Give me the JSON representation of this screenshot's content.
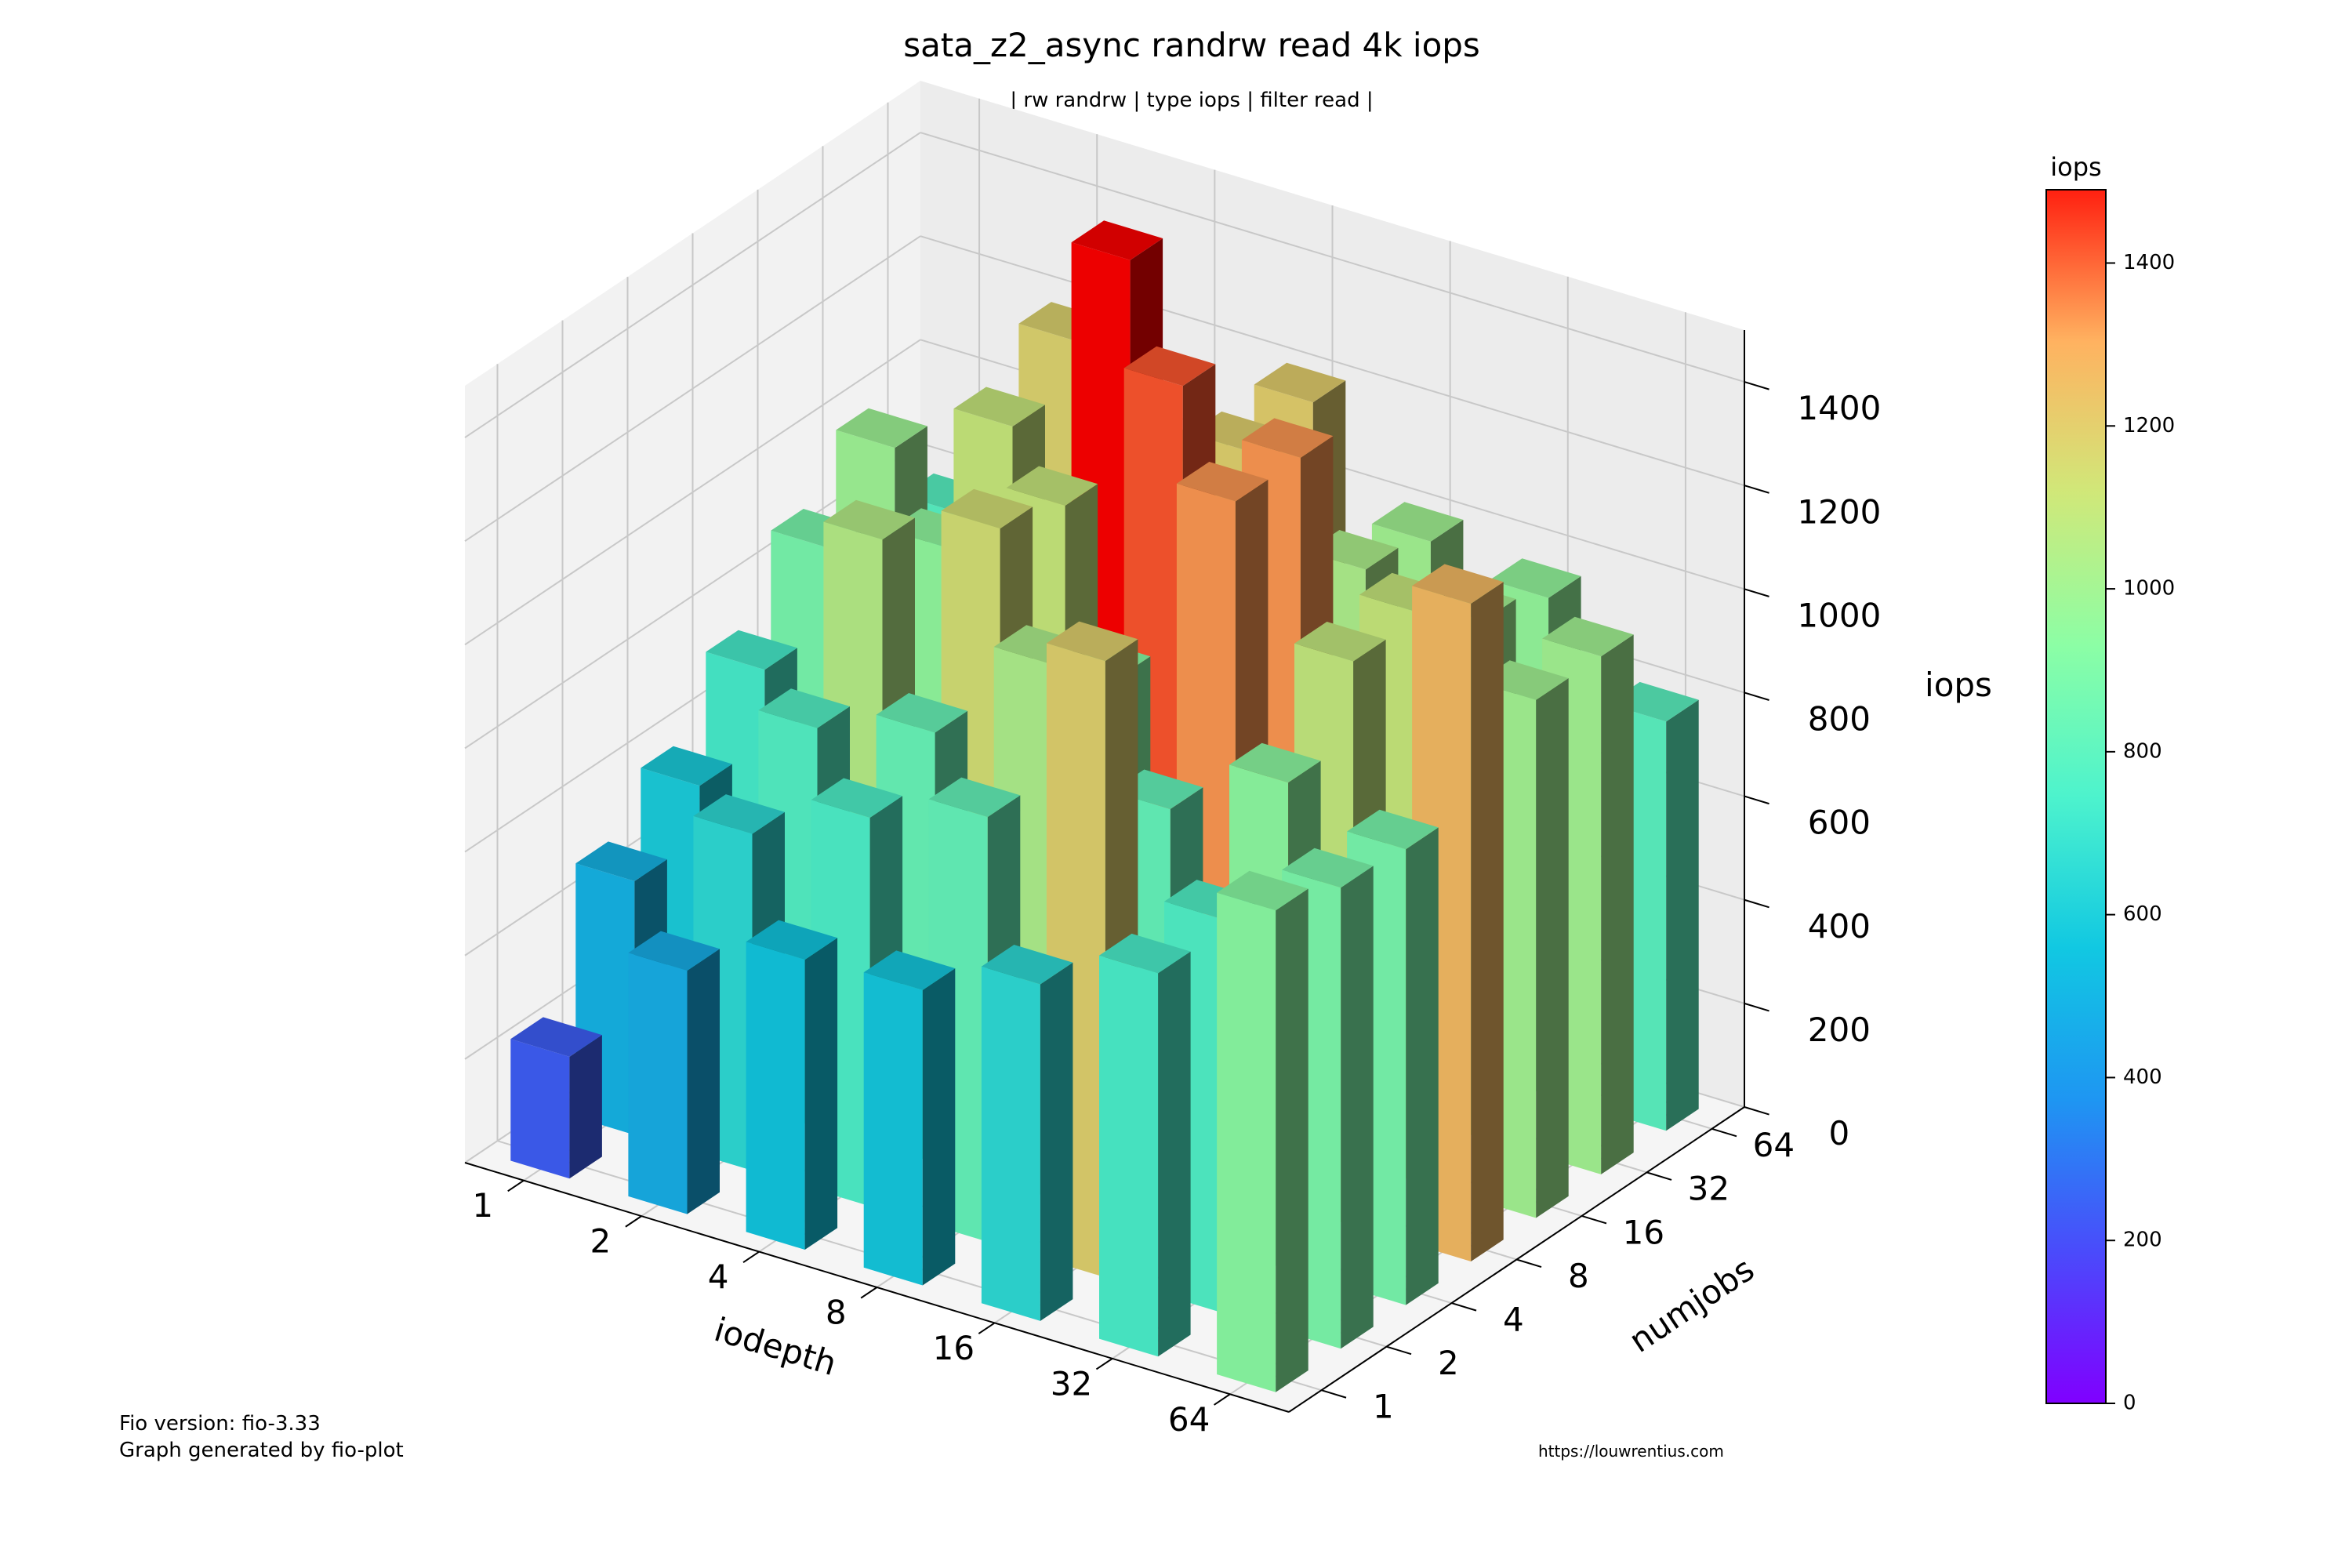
{
  "chart_data": {
    "type": "bar3d",
    "title": "sata_z2_async randrw read 4k iops",
    "subtitle": "| rw randrw | type iops | filter read |",
    "xlabel": "iodepth",
    "ylabel": "numjobs",
    "zlabel": "iops",
    "x_categories": [
      "1",
      "2",
      "4",
      "8",
      "16",
      "32",
      "64"
    ],
    "y_categories": [
      "1",
      "2",
      "4",
      "8",
      "16",
      "32",
      "64"
    ],
    "zlim": [
      0,
      1500
    ],
    "z_ticks": [
      "0",
      "200",
      "400",
      "600",
      "800",
      "1000",
      "1200",
      "1400"
    ],
    "grid": true,
    "colormap": "rainbow",
    "colorbar": {
      "label": "iops",
      "range": [
        0,
        1490
      ],
      "ticks": [
        "0",
        "200",
        "400",
        "600",
        "800",
        "1000",
        "1200",
        "1400"
      ]
    },
    "values": [
      [
        235,
        470,
        560,
        570,
        650,
        740,
        930
      ],
      [
        490,
        650,
        750,
        820,
        1190,
        760,
        890
      ],
      [
        590,
        770,
        830,
        1030,
        820,
        940,
        880
      ],
      [
        730,
        1050,
        1140,
        920,
        1330,
        1090,
        1270
      ],
      [
        880,
        950,
        1100,
        1400,
        1330,
        1100,
        1000
      ],
      [
        990,
        1100,
        1490,
        1190,
        1030,
        1000,
        1000
      ],
      [
        780,
        1180,
        1010,
        1200,
        1000,
        960,
        790
      ]
    ]
  },
  "footer": {
    "fio_version": "Fio version: fio-3.33",
    "generator": "Graph generated by fio-plot",
    "url": "https://louwrentius.com"
  }
}
